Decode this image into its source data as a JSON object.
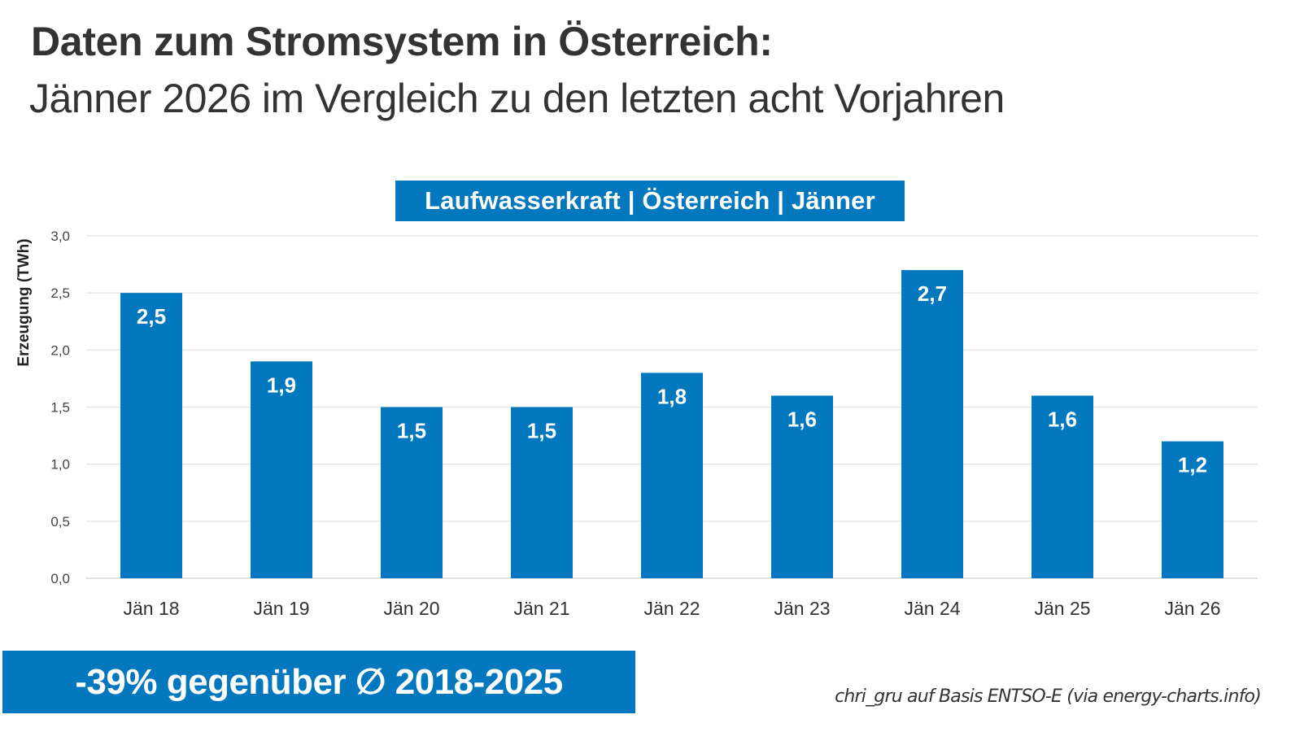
{
  "header": {
    "title": "Daten zum Stromsystem in Österreich:",
    "subtitle": "Jänner 2026 im Vergleich zu den letzten acht Vorjahren"
  },
  "chart_data": {
    "type": "bar",
    "title": "Laufwasserkraft | Österreich | Jänner",
    "xlabel": "",
    "ylabel": "Erzeugung (TWh)",
    "ylim": [
      0,
      3.0
    ],
    "yticks": [
      0,
      0.5,
      1.0,
      1.5,
      2.0,
      2.5,
      3.0
    ],
    "ytick_labels": [
      "0,0",
      "0,5",
      "1,0",
      "1,5",
      "2,0",
      "2,5",
      "3,0"
    ],
    "grid": true,
    "legend": "none",
    "categories": [
      "Jän 18",
      "Jän 19",
      "Jän 20",
      "Jän 21",
      "Jän 22",
      "Jän 23",
      "Jän 24",
      "Jän 25",
      "Jän 26"
    ],
    "values": [
      2.5,
      1.9,
      1.5,
      1.5,
      1.8,
      1.6,
      2.7,
      1.6,
      1.2
    ],
    "data_labels": [
      "2,5",
      "1,9",
      "1,5",
      "1,5",
      "1,8",
      "1,6",
      "2,7",
      "1,6",
      "1,2"
    ],
    "bar_color": "#0378BF"
  },
  "callout": {
    "text": "-39% gegenüber ∅ 2018-2025",
    "color": "#0378BF"
  },
  "source": "chri_gru auf Basis ENTSO-E (via energy-charts.info)"
}
